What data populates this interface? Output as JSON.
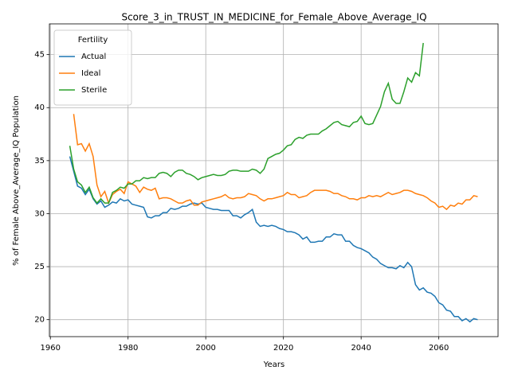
{
  "chart_data": {
    "type": "line",
    "title": "Score_3_in_TRUST_IN_MEDICINE_for_Female_Above_Average_IQ",
    "x_label": "Years",
    "y_label": "% of Female Above_Average_IQ Population",
    "legend_title": "Fertility",
    "legend_position": "upper left",
    "grid": true,
    "xlim": [
      1959.75,
      2075.25
    ],
    "ylim": [
      18.4,
      47.9
    ],
    "xticks": [
      1960,
      1980,
      2000,
      2020,
      2040,
      2060
    ],
    "yticks": [
      20,
      25,
      30,
      35,
      40,
      45
    ],
    "x": [
      1965,
      1966,
      1967,
      1968,
      1969,
      1970,
      1971,
      1972,
      1973,
      1974,
      1975,
      1976,
      1977,
      1978,
      1979,
      1980,
      1981,
      1982,
      1983,
      1984,
      1985,
      1986,
      1987,
      1988,
      1989,
      1990,
      1991,
      1992,
      1993,
      1994,
      1995,
      1996,
      1997,
      1998,
      1999,
      2000,
      2001,
      2002,
      2003,
      2004,
      2005,
      2006,
      2007,
      2008,
      2009,
      2010,
      2011,
      2012,
      2013,
      2014,
      2015,
      2016,
      2017,
      2018,
      2019,
      2020,
      2021,
      2022,
      2023,
      2024,
      2025,
      2026,
      2027,
      2028,
      2029,
      2030,
      2031,
      2032,
      2033,
      2034,
      2035,
      2036,
      2037,
      2038,
      2039,
      2040,
      2041,
      2042,
      2043,
      2044,
      2045,
      2046,
      2047,
      2048,
      2049,
      2050,
      2051,
      2052,
      2053,
      2054,
      2055,
      2056,
      2057,
      2058,
      2059,
      2060,
      2061,
      2062,
      2063,
      2064,
      2065,
      2066,
      2067,
      2068,
      2069,
      2070
    ],
    "series": [
      {
        "name": "Actual",
        "color": "#1f77b4",
        "values": [
          35.4,
          34.0,
          32.6,
          32.4,
          31.8,
          32.3,
          31.4,
          30.9,
          31.2,
          30.6,
          30.8,
          31.1,
          31.0,
          31.4,
          31.2,
          31.3,
          30.9,
          30.8,
          30.7,
          30.6,
          29.7,
          29.6,
          29.8,
          29.8,
          30.1,
          30.1,
          30.5,
          30.4,
          30.5,
          30.7,
          30.7,
          30.9,
          31.0,
          30.9,
          31.0,
          30.6,
          30.5,
          30.4,
          30.4,
          30.3,
          30.3,
          30.3,
          29.8,
          29.8,
          29.6,
          29.9,
          30.1,
          30.4,
          29.2,
          28.8,
          28.9,
          28.8,
          28.9,
          28.8,
          28.6,
          28.5,
          28.3,
          28.3,
          28.2,
          28.0,
          27.6,
          27.8,
          27.3,
          27.3,
          27.4,
          27.4,
          27.8,
          27.8,
          28.1,
          28.0,
          28.0,
          27.4,
          27.4,
          27.0,
          26.8,
          26.7,
          26.5,
          26.3,
          25.9,
          25.7,
          25.3,
          25.1,
          24.9,
          24.9,
          24.8,
          25.1,
          24.9,
          25.4,
          25.0,
          23.3,
          22.8,
          23.0,
          22.6,
          22.5,
          22.2,
          21.6,
          21.4,
          20.9,
          20.8,
          20.3,
          20.3,
          19.9,
          20.1,
          19.8,
          20.1,
          20.0
        ]
      },
      {
        "name": "Ideal",
        "color": "#ff7f0e",
        "values": [
          null,
          39.4,
          36.5,
          36.6,
          35.9,
          36.6,
          35.4,
          32.7,
          31.6,
          32.1,
          31.0,
          31.8,
          32.1,
          32.3,
          31.9,
          33.0,
          32.8,
          32.6,
          32.0,
          32.5,
          32.3,
          32.2,
          32.4,
          31.4,
          31.5,
          31.5,
          31.4,
          31.2,
          31.0,
          31.0,
          31.2,
          31.3,
          30.8,
          30.8,
          31.1,
          31.2,
          31.3,
          31.4,
          31.5,
          31.6,
          31.8,
          31.5,
          31.4,
          31.5,
          31.5,
          31.6,
          31.9,
          31.8,
          31.7,
          31.4,
          31.2,
          31.4,
          31.4,
          31.5,
          31.6,
          31.7,
          32.0,
          31.8,
          31.8,
          31.5,
          31.6,
          31.7,
          32.0,
          32.2,
          32.2,
          32.2,
          32.2,
          32.1,
          31.9,
          31.9,
          31.7,
          31.6,
          31.4,
          31.4,
          31.3,
          31.5,
          31.5,
          31.7,
          31.6,
          31.7,
          31.6,
          31.8,
          32.0,
          31.8,
          31.9,
          32.0,
          32.2,
          32.2,
          32.1,
          31.9,
          31.8,
          31.7,
          31.5,
          31.2,
          31.0,
          30.6,
          30.7,
          30.4,
          30.8,
          30.7,
          31.0,
          30.9,
          31.3,
          31.3,
          31.7,
          31.6
        ]
      },
      {
        "name": "Sterile",
        "color": "#2ca02c",
        "values": [
          36.4,
          34.2,
          33.0,
          32.7,
          32.0,
          32.5,
          31.5,
          31.0,
          31.4,
          31.0,
          31.0,
          32.0,
          32.2,
          32.5,
          32.4,
          32.8,
          32.8,
          33.1,
          33.1,
          33.4,
          33.3,
          33.4,
          33.4,
          33.8,
          33.9,
          33.8,
          33.5,
          33.9,
          34.1,
          34.1,
          33.8,
          33.7,
          33.5,
          33.2,
          33.4,
          33.5,
          33.6,
          33.7,
          33.6,
          33.6,
          33.7,
          34.0,
          34.1,
          34.1,
          34.0,
          34.0,
          34.0,
          34.2,
          34.1,
          33.8,
          34.2,
          35.2,
          35.4,
          35.6,
          35.7,
          36.0,
          36.4,
          36.5,
          37.0,
          37.2,
          37.1,
          37.4,
          37.5,
          37.5,
          37.5,
          37.8,
          38.0,
          38.3,
          38.6,
          38.7,
          38.4,
          38.3,
          38.2,
          38.6,
          38.7,
          39.2,
          38.5,
          38.4,
          38.5,
          39.3,
          40.1,
          41.5,
          42.3,
          40.8,
          40.4,
          40.4,
          41.5,
          42.8,
          42.4,
          43.3,
          43.0,
          46.1,
          null,
          null,
          null,
          null,
          null,
          null,
          null,
          null,
          null,
          null,
          null,
          null,
          null,
          null
        ]
      }
    ]
  }
}
